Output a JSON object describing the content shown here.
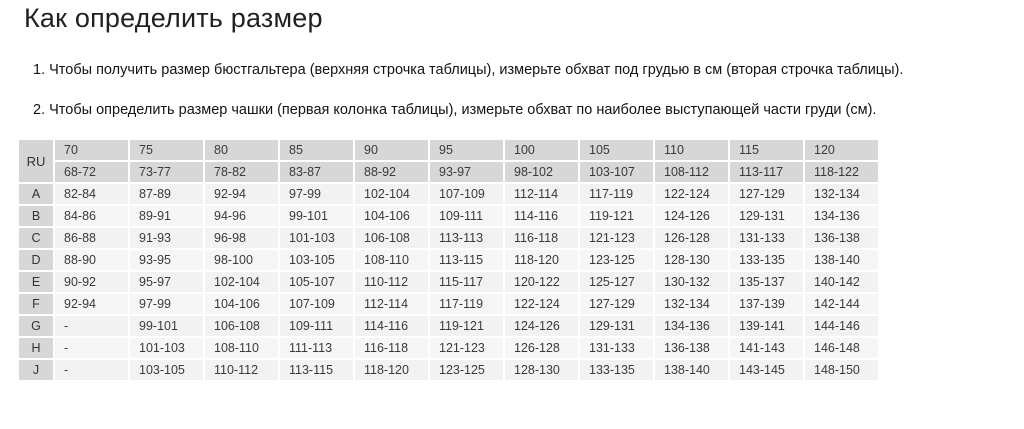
{
  "page": {
    "title": "Как определить размер"
  },
  "instructions": [
    "1. Чтобы получить размер бюстгальтера (верхняя строчка таблицы), измерьте обхват под грудью в см (вторая строчка таблицы).",
    "2. Чтобы определить размер чашки (первая колонка таблицы), измерьте обхват по наиболее выступающей части груди (см)."
  ],
  "size_table": {
    "corner_label": "RU",
    "band_sizes": [
      "70",
      "75",
      "80",
      "85",
      "90",
      "95",
      "100",
      "105",
      "110",
      "115",
      "120"
    ],
    "underbust_ranges": [
      "68-72",
      "73-77",
      "78-82",
      "83-87",
      "88-92",
      "93-97",
      "98-102",
      "103-107",
      "108-112",
      "113-117",
      "118-122"
    ],
    "cup_rows": [
      {
        "cup": "A",
        "values": [
          "82-84",
          "87-89",
          "92-94",
          "97-99",
          "102-104",
          "107-109",
          "112-114",
          "117-119",
          "122-124",
          "127-129",
          "132-134"
        ]
      },
      {
        "cup": "B",
        "values": [
          "84-86",
          "89-91",
          "94-96",
          "99-101",
          "104-106",
          "109-111",
          "114-116",
          "119-121",
          "124-126",
          "129-131",
          "134-136"
        ]
      },
      {
        "cup": "C",
        "values": [
          "86-88",
          "91-93",
          "96-98",
          "101-103",
          "106-108",
          "113-113",
          "116-118",
          "121-123",
          "126-128",
          "131-133",
          "136-138"
        ]
      },
      {
        "cup": "D",
        "values": [
          "88-90",
          "93-95",
          "98-100",
          "103-105",
          "108-110",
          "113-115",
          "118-120",
          "123-125",
          "128-130",
          "133-135",
          "138-140"
        ]
      },
      {
        "cup": "E",
        "values": [
          "90-92",
          "95-97",
          "102-104",
          "105-107",
          "110-112",
          "115-117",
          "120-122",
          "125-127",
          "130-132",
          "135-137",
          "140-142"
        ]
      },
      {
        "cup": "F",
        "values": [
          "92-94",
          "97-99",
          "104-106",
          "107-109",
          "112-114",
          "117-119",
          "122-124",
          "127-129",
          "132-134",
          "137-139",
          "142-144"
        ]
      },
      {
        "cup": "G",
        "values": [
          "-",
          "99-101",
          "106-108",
          "109-111",
          "114-116",
          "119-121",
          "124-126",
          "129-131",
          "134-136",
          "139-141",
          "144-146"
        ]
      },
      {
        "cup": "H",
        "values": [
          "-",
          "101-103",
          "108-110",
          "111-113",
          "116-118",
          "121-123",
          "126-128",
          "131-133",
          "136-138",
          "141-143",
          "146-148"
        ]
      },
      {
        "cup": "J",
        "values": [
          "-",
          "103-105",
          "110-112",
          "113-115",
          "118-120",
          "123-125",
          "128-130",
          "133-135",
          "138-140",
          "143-145",
          "148-150"
        ]
      }
    ],
    "colors": {
      "header_bg": "#d7d7d8",
      "cell_bg": "#f2f2f3",
      "cell_alt_bg": "#f6f6f7",
      "text": "#3a3a3a"
    }
  }
}
